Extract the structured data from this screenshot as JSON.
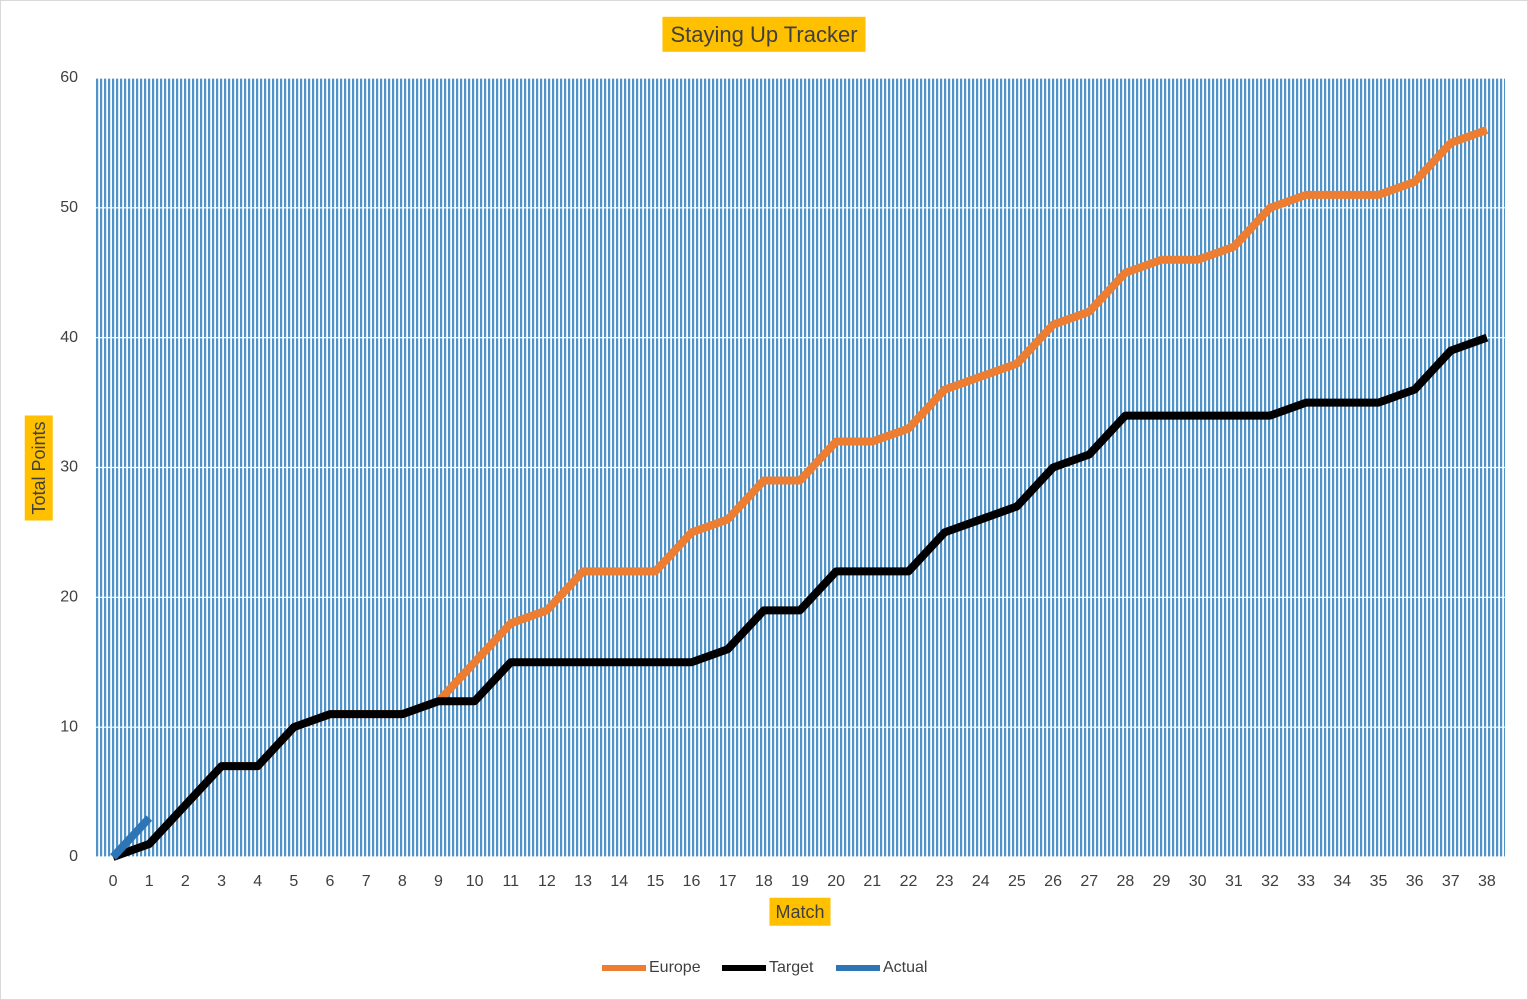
{
  "chart_data": {
    "type": "line",
    "title": "Staying Up Tracker",
    "x_label": "Match",
    "y_label": "Total Points",
    "categories": [
      0,
      1,
      2,
      3,
      4,
      5,
      6,
      7,
      8,
      9,
      10,
      11,
      12,
      13,
      14,
      15,
      16,
      17,
      18,
      19,
      20,
      21,
      22,
      23,
      24,
      25,
      26,
      27,
      28,
      29,
      30,
      31,
      32,
      33,
      34,
      35,
      36,
      37,
      38
    ],
    "series": [
      {
        "name": "Europe",
        "color": "#ed7d31",
        "values": [
          0,
          1,
          4,
          7,
          7,
          10,
          11,
          11,
          11,
          12,
          15,
          18,
          19,
          22,
          22,
          22,
          25,
          26,
          29,
          29,
          32,
          32,
          33,
          36,
          37,
          38,
          41,
          42,
          45,
          46,
          46,
          47,
          50,
          51,
          51,
          51,
          52,
          55,
          56
        ]
      },
      {
        "name": "Target",
        "color": "#000000",
        "values": [
          0,
          1,
          4,
          7,
          7,
          10,
          11,
          11,
          11,
          12,
          12,
          15,
          15,
          15,
          15,
          15,
          15,
          16,
          19,
          19,
          22,
          22,
          22,
          25,
          26,
          27,
          30,
          31,
          34,
          34,
          34,
          34,
          34,
          35,
          35,
          35,
          36,
          39,
          40
        ]
      },
      {
        "name": "Actual",
        "color": "#2e75b6",
        "values": [
          0,
          3,
          null,
          null,
          null,
          null,
          null,
          null,
          null,
          null,
          null,
          null,
          null,
          null,
          null,
          null,
          null,
          null,
          null,
          null,
          null,
          null,
          null,
          null,
          null,
          null,
          null,
          null,
          null,
          null,
          null,
          null,
          null,
          null,
          null,
          null,
          null,
          null,
          null
        ]
      }
    ],
    "ylim": [
      0,
      60
    ],
    "yticks": [
      0,
      10,
      20,
      30,
      40,
      50,
      60
    ],
    "grid": true,
    "legend": "bottom"
  }
}
